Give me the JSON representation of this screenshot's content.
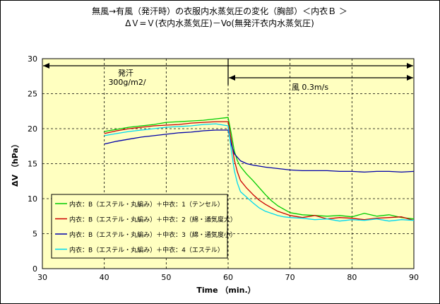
{
  "chart_data": {
    "type": "line",
    "title": "無風→有風（発汗時）の衣服内水蒸気圧の変化（胸部）＜内衣Ｂ ＞",
    "subtitle": "ΔＶ=Ｖ(衣内水蒸気圧)－Vo(無発汗衣内水蒸気圧)",
    "xlabel": "Time （min.）",
    "ylabel": "ΔV （hPa）",
    "xlim": [
      30,
      90
    ],
    "ylim": [
      0,
      30
    ],
    "xticks": [
      30,
      40,
      50,
      60,
      70,
      80,
      90
    ],
    "yticks": [
      0,
      5,
      10,
      15,
      20,
      25,
      30
    ],
    "grid": "dashed",
    "legend_position": "lower-left",
    "annotations": [
      {
        "lines": [
          "発汗",
          "300g/m2/"
        ],
        "span": [
          30,
          90
        ]
      },
      {
        "lines": [
          "風 0.3m/s"
        ],
        "span": [
          60,
          90
        ]
      }
    ],
    "series": [
      {
        "name": "内衣：B（エステル・丸編み）＋中衣：1（テンセル）",
        "color": "#00cc00",
        "x": [
          40,
          42,
          44,
          46,
          48,
          50,
          52,
          54,
          56,
          58,
          60,
          60.5,
          61,
          61.5,
          62,
          63,
          64,
          65,
          66,
          67,
          68,
          69,
          70,
          72,
          74,
          76,
          78,
          80,
          82,
          84,
          86,
          88,
          90
        ],
        "y": [
          19.6,
          19.9,
          20.2,
          20.4,
          20.6,
          20.9,
          21.0,
          21.1,
          21.2,
          21.4,
          21.6,
          19.3,
          16.8,
          15.4,
          14.6,
          13.5,
          12.6,
          11.6,
          10.6,
          9.7,
          9.0,
          8.5,
          8.0,
          7.7,
          7.6,
          7.5,
          7.6,
          7.4,
          7.9,
          7.5,
          7.7,
          7.3,
          7.1
        ]
      },
      {
        "name": "内衣：B（エステル・丸編み）＋中衣：2（綿・通気度大）",
        "color": "#cc0000",
        "x": [
          40,
          42,
          44,
          46,
          48,
          50,
          52,
          54,
          56,
          58,
          60,
          60.5,
          61,
          61.5,
          62,
          63,
          64,
          65,
          66,
          67,
          68,
          69,
          70,
          72,
          74,
          76,
          78,
          80,
          82,
          84,
          86,
          88,
          90
        ],
        "y": [
          19.3,
          19.7,
          20.0,
          20.2,
          20.4,
          20.5,
          20.6,
          20.8,
          20.9,
          21.0,
          21.0,
          18.4,
          15.5,
          13.8,
          12.6,
          11.5,
          10.6,
          9.8,
          9.2,
          8.7,
          8.2,
          7.9,
          7.6,
          7.3,
          7.6,
          7.1,
          7.3,
          7.2,
          7.0,
          7.2,
          7.3,
          7.4,
          6.9
        ]
      },
      {
        "name": "内衣：B（エステル・丸編み）＋中衣：3（綿・通気度小）",
        "color": "#0000aa",
        "x": [
          40,
          42,
          44,
          46,
          48,
          50,
          52,
          54,
          56,
          58,
          60,
          60.5,
          61,
          62,
          63,
          64,
          66,
          68,
          70,
          72,
          74,
          76,
          78,
          80,
          82,
          84,
          86,
          88,
          90
        ],
        "y": [
          17.8,
          18.2,
          18.5,
          18.8,
          19.0,
          19.2,
          19.4,
          19.5,
          19.7,
          19.8,
          19.8,
          17.8,
          16.4,
          15.4,
          15.0,
          14.8,
          14.5,
          14.3,
          14.1,
          14.0,
          14.0,
          14.0,
          13.9,
          13.9,
          13.8,
          13.9,
          13.9,
          13.8,
          13.9
        ]
      },
      {
        "name": "内衣：B（エステル・丸編み）＋中衣：4（エステル）",
        "color": "#00d8f0",
        "x": [
          40,
          42,
          44,
          46,
          48,
          50,
          52,
          54,
          56,
          58,
          60,
          60.5,
          61,
          61.5,
          62,
          63,
          64,
          65,
          66,
          67,
          68,
          69,
          70,
          72,
          74,
          76,
          78,
          80,
          82,
          84,
          86,
          88,
          90
        ],
        "y": [
          19.0,
          19.3,
          19.6,
          19.8,
          20.0,
          20.2,
          20.3,
          20.4,
          20.6,
          20.7,
          20.4,
          17.0,
          14.0,
          12.2,
          11.0,
          10.2,
          9.4,
          8.7,
          8.2,
          7.9,
          7.6,
          7.4,
          7.3,
          7.2,
          7.0,
          7.1,
          6.8,
          7.0,
          6.9,
          7.1,
          6.8,
          7.0,
          6.9
        ]
      }
    ]
  }
}
